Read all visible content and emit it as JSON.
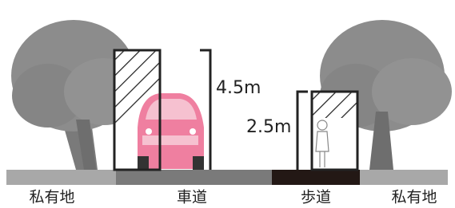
{
  "dimensions": [
    {
      "label": "4.5m"
    },
    {
      "label": "2.5m"
    }
  ],
  "ground": [
    {
      "label": "私有地"
    },
    {
      "label": "車道"
    },
    {
      "label": "歩道"
    },
    {
      "label": "私有地"
    }
  ]
}
